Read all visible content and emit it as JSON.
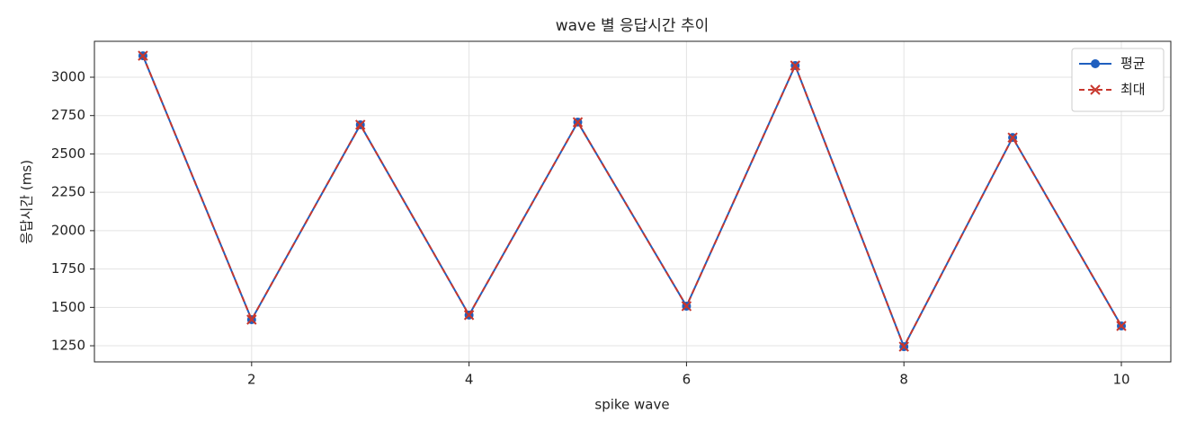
{
  "chart_data": {
    "type": "line",
    "title": "wave 별 응답시간 추이",
    "x_label": "spike wave",
    "y_label": "응답시간 (ms)",
    "x": [
      1,
      2,
      3,
      4,
      5,
      6,
      7,
      8,
      9,
      10
    ],
    "series": [
      {
        "name": "평균",
        "color": "#1f5fbf",
        "marker": "o",
        "linestyle": "solid",
        "values": [
          3140,
          1420,
          2690,
          1450,
          2707,
          1508,
          3076,
          1244,
          2607,
          1379
        ]
      },
      {
        "name": "최대",
        "color": "#c8372d",
        "marker": "x",
        "linestyle": "dashed",
        "values": [
          3140,
          1420,
          2690,
          1450,
          2707,
          1508,
          3076,
          1244,
          2607,
          1379
        ]
      }
    ],
    "xlim": [
      0.554,
      10.455
    ],
    "ylim": [
      1145,
      3234
    ],
    "xticks": [
      2,
      4,
      6,
      8,
      10
    ],
    "yticks": [
      1250,
      1500,
      1750,
      2000,
      2250,
      2500,
      2750,
      3000
    ],
    "grid": true,
    "legend": "upper right"
  }
}
